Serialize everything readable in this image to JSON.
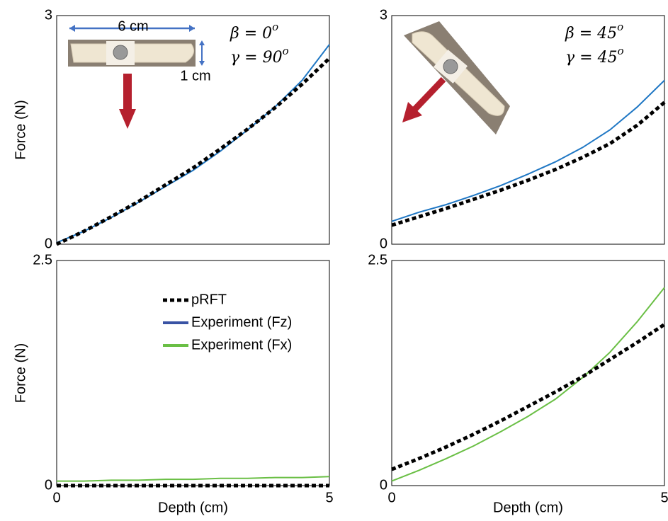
{
  "chart_data": [
    {
      "type": "line",
      "ylabel": "Force (N)",
      "annotations": [
        {
          "text": "β = 0",
          "sup": "o"
        },
        {
          "text": "γ = 90",
          "sup": "o"
        }
      ],
      "dimension_labels": [
        "6 cm",
        "1 cm"
      ],
      "x": [
        0,
        0.5,
        1,
        1.5,
        2,
        2.5,
        3,
        3.5,
        4,
        4.5,
        5
      ],
      "xlim": [
        0,
        5
      ],
      "ylim": [
        0,
        3
      ],
      "yticks": [
        0,
        3
      ],
      "series": [
        {
          "color": "#1f77c4",
          "dash": false,
          "values": [
            0.02,
            0.17,
            0.35,
            0.55,
            0.76,
            0.97,
            1.22,
            1.5,
            1.8,
            2.15,
            2.62
          ]
        },
        {
          "color": "#000000",
          "dash": true,
          "values": [
            0,
            0.17,
            0.36,
            0.56,
            0.78,
            1.0,
            1.25,
            1.51,
            1.79,
            2.1,
            2.44
          ]
        }
      ]
    },
    {
      "type": "line",
      "annotations": [
        {
          "text": "β = 45",
          "sup": "o"
        },
        {
          "text": "γ = 45",
          "sup": "o"
        }
      ],
      "x": [
        0,
        0.5,
        1,
        1.5,
        2,
        2.5,
        3,
        3.5,
        4,
        4.5,
        5
      ],
      "xlim": [
        0,
        5
      ],
      "ylim": [
        0,
        3
      ],
      "yticks": [
        0,
        3
      ],
      "series": [
        {
          "color": "#1f77c4",
          "dash": false,
          "values": [
            0.3,
            0.42,
            0.52,
            0.64,
            0.77,
            0.92,
            1.08,
            1.27,
            1.5,
            1.8,
            2.15
          ]
        },
        {
          "color": "#000000",
          "dash": true,
          "values": [
            0.25,
            0.36,
            0.47,
            0.59,
            0.71,
            0.84,
            0.98,
            1.14,
            1.32,
            1.56,
            1.86
          ]
        }
      ]
    },
    {
      "type": "line",
      "ylabel": "Force (N)",
      "xlabel": "Depth (cm)",
      "legend": [
        {
          "name": "pRFT",
          "color": "#000000",
          "dash": true
        },
        {
          "name": "Experiment (Fz)",
          "color": "#3953a4",
          "dash": false
        },
        {
          "name": "Experiment (Fx)",
          "color": "#6abf45",
          "dash": false
        }
      ],
      "x": [
        0,
        0.5,
        1,
        1.5,
        2,
        2.5,
        3,
        3.5,
        4,
        4.5,
        5
      ],
      "xlim": [
        0,
        5
      ],
      "xticks": [
        0,
        5
      ],
      "ylim": [
        0,
        2.5
      ],
      "yticks": [
        0,
        2.5
      ],
      "series": [
        {
          "color": "#6abf45",
          "dash": false,
          "values": [
            0.05,
            0.05,
            0.06,
            0.06,
            0.07,
            0.07,
            0.08,
            0.08,
            0.09,
            0.09,
            0.1
          ]
        },
        {
          "color": "#000000",
          "dash": true,
          "values": [
            0,
            0,
            0,
            0,
            0,
            0,
            0,
            0,
            0,
            0,
            0
          ]
        }
      ]
    },
    {
      "type": "line",
      "xlabel": "Depth (cm)",
      "x": [
        0,
        0.5,
        1,
        1.5,
        2,
        2.5,
        3,
        3.5,
        4,
        4.5,
        5
      ],
      "xlim": [
        0,
        5
      ],
      "xticks": [
        0,
        5
      ],
      "ylim": [
        0,
        2.5
      ],
      "yticks": [
        0,
        2.5
      ],
      "series": [
        {
          "color": "#6abf45",
          "dash": false,
          "values": [
            0.05,
            0.17,
            0.3,
            0.44,
            0.6,
            0.77,
            0.96,
            1.2,
            1.48,
            1.82,
            2.2
          ]
        },
        {
          "color": "#000000",
          "dash": true,
          "values": [
            0.18,
            0.3,
            0.43,
            0.57,
            0.72,
            0.88,
            1.04,
            1.21,
            1.4,
            1.59,
            1.79
          ]
        }
      ]
    }
  ]
}
